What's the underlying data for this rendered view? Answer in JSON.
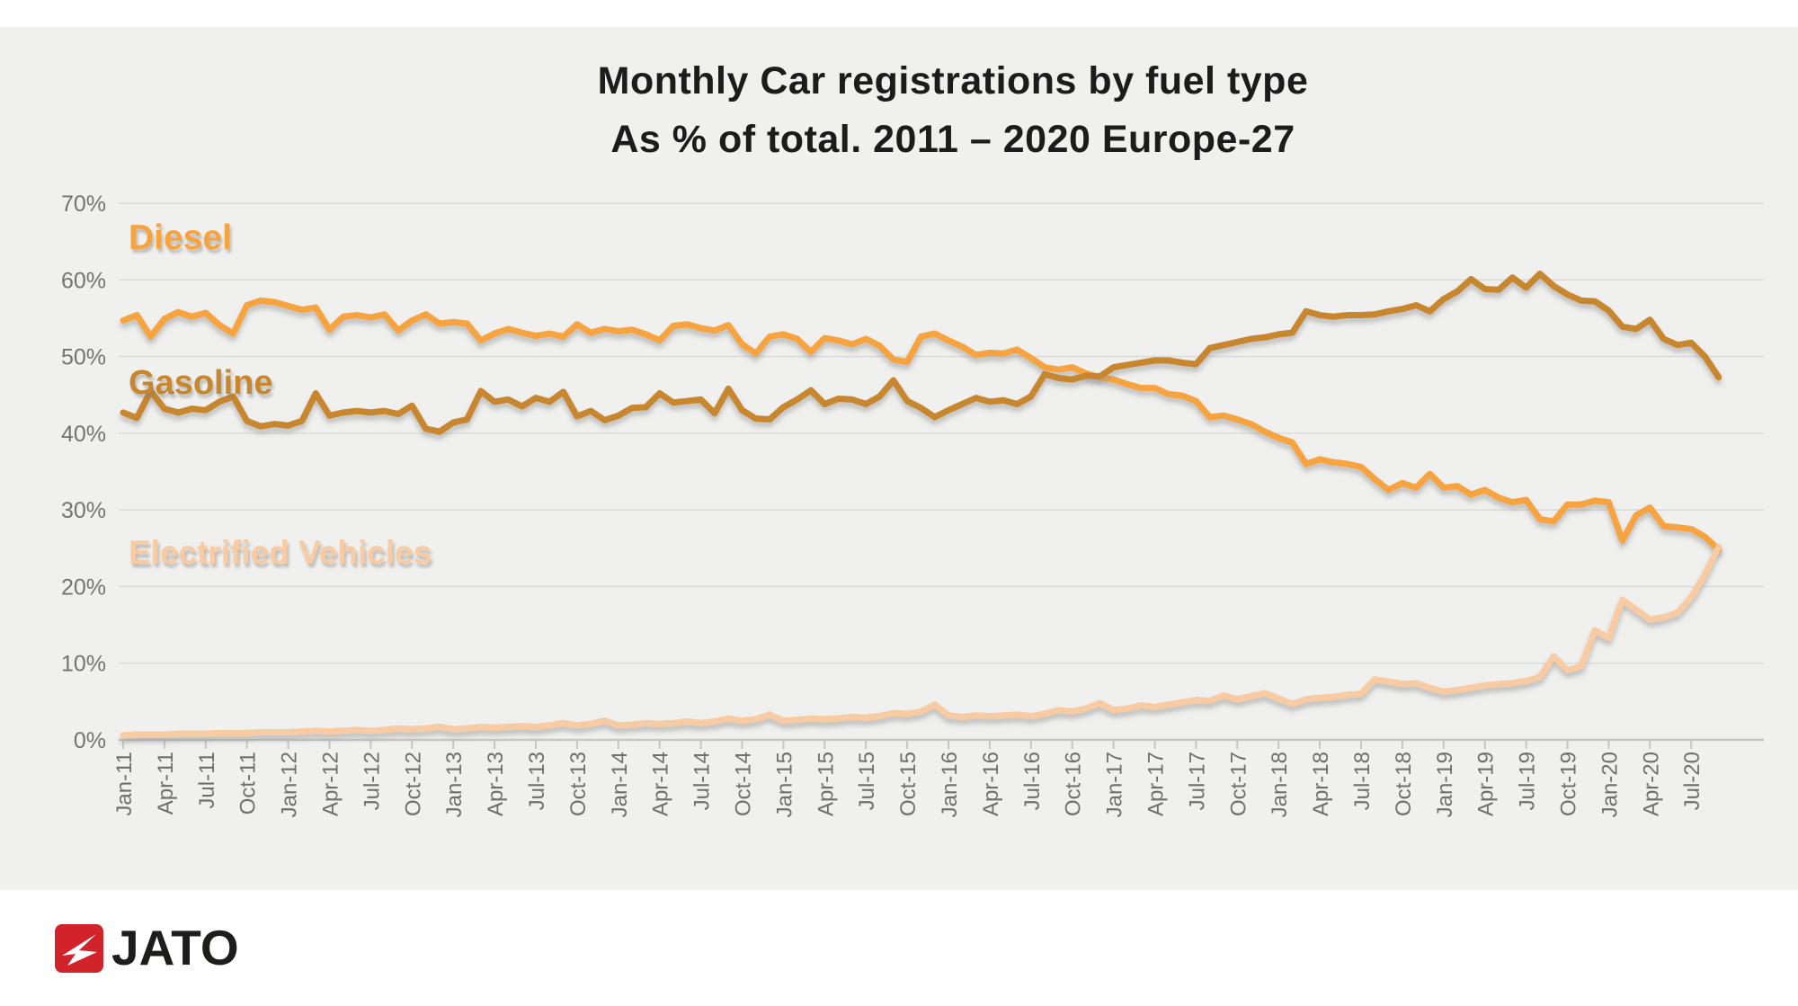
{
  "title": {
    "line1": "Monthly Car registrations by fuel type",
    "line2": "As % of total. 2011 – 2020 Europe-27"
  },
  "series_labels": {
    "diesel": "Diesel",
    "gasoline": "Gasoline",
    "ev": "Electrified Vehicles"
  },
  "footer": {
    "logo_text": "JATO",
    "logo_icon": "jato-arrow-icon",
    "logo_color": "#d2232a"
  },
  "colors": {
    "panel_background": "#f0f0ee",
    "diesel": "#f7a440",
    "gasoline": "#c8872e",
    "ev": "#f9cba3",
    "gridline": "#dcdcdc",
    "axis": "#c6c6c6",
    "tick_label": "#737373",
    "title_text": "#1c1c1c",
    "logo_red": "#d2232a"
  },
  "chart_data": {
    "type": "line",
    "title": "Monthly Car registrations by fuel type — As % of total. 2011 – 2020 Europe-27",
    "xlabel": "",
    "ylabel": "",
    "ylim": [
      0,
      70
    ],
    "yticks": [
      "0%",
      "10%",
      "20%",
      "30%",
      "40%",
      "50%",
      "60%",
      "70%"
    ],
    "grid": true,
    "legend_position": "inline-labels-on-chart",
    "x_tick_interval": "every 3rd month shown (Jan/Apr/Jul/Oct)",
    "x": [
      "Jan-11",
      "Feb-11",
      "Mar-11",
      "Apr-11",
      "May-11",
      "Jun-11",
      "Jul-11",
      "Aug-11",
      "Sep-11",
      "Oct-11",
      "Nov-11",
      "Dec-11",
      "Jan-12",
      "Feb-12",
      "Mar-12",
      "Apr-12",
      "May-12",
      "Jun-12",
      "Jul-12",
      "Aug-12",
      "Sep-12",
      "Oct-12",
      "Nov-12",
      "Dec-12",
      "Jan-13",
      "Feb-13",
      "Mar-13",
      "Apr-13",
      "May-13",
      "Jun-13",
      "Jul-13",
      "Aug-13",
      "Sep-13",
      "Oct-13",
      "Nov-13",
      "Dec-13",
      "Jan-14",
      "Feb-14",
      "Mar-14",
      "Apr-14",
      "May-14",
      "Jun-14",
      "Jul-14",
      "Aug-14",
      "Sep-14",
      "Oct-14",
      "Nov-14",
      "Dec-14",
      "Jan-15",
      "Feb-15",
      "Mar-15",
      "Apr-15",
      "May-15",
      "Jun-15",
      "Jul-15",
      "Aug-15",
      "Sep-15",
      "Oct-15",
      "Nov-15",
      "Dec-15",
      "Jan-16",
      "Feb-16",
      "Mar-16",
      "Apr-16",
      "May-16",
      "Jun-16",
      "Jul-16",
      "Aug-16",
      "Sep-16",
      "Oct-16",
      "Nov-16",
      "Dec-16",
      "Jan-17",
      "Feb-17",
      "Mar-17",
      "Apr-17",
      "May-17",
      "Jun-17",
      "Jul-17",
      "Aug-17",
      "Sep-17",
      "Oct-17",
      "Nov-17",
      "Dec-17",
      "Jan-18",
      "Feb-18",
      "Mar-18",
      "Apr-18",
      "May-18",
      "Jun-18",
      "Jul-18",
      "Aug-18",
      "Sep-18",
      "Oct-18",
      "Nov-18",
      "Dec-18",
      "Jan-19",
      "Feb-19",
      "Mar-19",
      "Apr-19",
      "May-19",
      "Jun-19",
      "Jul-19",
      "Aug-19",
      "Sep-19",
      "Oct-19",
      "Nov-19",
      "Dec-19",
      "Jan-20",
      "Feb-20",
      "Mar-20",
      "Apr-20",
      "May-20",
      "Jun-20",
      "Jul-20",
      "Aug-20",
      "Sep-20"
    ],
    "series": [
      {
        "name": "Diesel",
        "color": "#f7a440",
        "values": [
          54.7,
          55.4,
          52.6,
          54.9,
          55.8,
          55.2,
          55.7,
          54.1,
          53.0,
          56.7,
          57.3,
          57.1,
          56.6,
          56.1,
          56.4,
          53.5,
          55.2,
          55.4,
          55.1,
          55.5,
          53.4,
          54.7,
          55.5,
          54.3,
          54.5,
          54.3,
          52.1,
          53.0,
          53.6,
          53.1,
          52.7,
          53.0,
          52.6,
          54.2,
          53.1,
          53.6,
          53.3,
          53.5,
          52.9,
          52.1,
          54.0,
          54.2,
          53.7,
          53.4,
          54.1,
          51.6,
          50.4,
          52.6,
          52.9,
          52.3,
          50.6,
          52.4,
          52.1,
          51.6,
          52.3,
          51.4,
          49.6,
          49.3,
          52.6,
          53.0,
          52.1,
          51.3,
          50.2,
          50.5,
          50.4,
          50.9,
          49.8,
          48.6,
          48.3,
          48.6,
          47.8,
          47.3,
          47.0,
          46.4,
          45.9,
          45.9,
          45.1,
          44.9,
          44.2,
          42.1,
          42.3,
          41.8,
          41.2,
          40.2,
          39.4,
          38.8,
          36.0,
          36.6,
          36.2,
          36.0,
          35.6,
          34.0,
          32.6,
          33.5,
          32.9,
          34.7,
          32.9,
          33.1,
          32.0,
          32.6,
          31.6,
          31.0,
          31.3,
          28.8,
          28.5,
          30.7,
          30.7,
          31.2,
          31.0,
          26.0,
          29.3,
          30.3,
          27.9,
          27.7,
          27.5,
          26.5,
          24.8
        ]
      },
      {
        "name": "Gasoline",
        "color": "#c8872e",
        "values": [
          42.7,
          42.0,
          45.5,
          43.2,
          42.7,
          43.2,
          43.0,
          44.1,
          44.8,
          41.6,
          40.9,
          41.2,
          41.0,
          41.6,
          45.2,
          42.3,
          42.7,
          42.9,
          42.7,
          42.9,
          42.5,
          43.6,
          40.6,
          40.2,
          41.4,
          41.8,
          45.5,
          44.1,
          44.4,
          43.5,
          44.6,
          44.1,
          45.4,
          42.2,
          42.9,
          41.7,
          42.3,
          43.3,
          43.4,
          45.2,
          44.0,
          44.2,
          44.4,
          42.6,
          45.8,
          43.0,
          41.9,
          41.8,
          43.4,
          44.4,
          45.6,
          43.8,
          44.5,
          44.4,
          43.8,
          44.8,
          46.9,
          44.2,
          43.3,
          42.1,
          43.0,
          43.8,
          44.6,
          44.1,
          44.3,
          43.8,
          44.8,
          47.7,
          47.2,
          47.0,
          47.5,
          47.4,
          48.6,
          48.9,
          49.2,
          49.5,
          49.5,
          49.2,
          49.0,
          51.1,
          51.5,
          51.9,
          52.3,
          52.5,
          52.9,
          53.1,
          55.9,
          55.4,
          55.2,
          55.4,
          55.4,
          55.5,
          55.9,
          56.2,
          56.7,
          55.9,
          57.5,
          58.5,
          60.1,
          58.8,
          58.7,
          60.3,
          59.0,
          60.8,
          59.2,
          58.1,
          57.3,
          57.2,
          56.0,
          53.9,
          53.6,
          54.8,
          52.3,
          51.5,
          51.8,
          50.0,
          47.3
        ]
      },
      {
        "name": "Electrified Vehicles",
        "color": "#f9cba3",
        "values": [
          0.6,
          0.7,
          0.7,
          0.7,
          0.8,
          0.8,
          0.8,
          0.9,
          0.9,
          0.9,
          1.0,
          1.0,
          1.0,
          1.1,
          1.2,
          1.1,
          1.2,
          1.3,
          1.2,
          1.3,
          1.5,
          1.4,
          1.5,
          1.7,
          1.4,
          1.5,
          1.7,
          1.6,
          1.7,
          1.8,
          1.7,
          1.9,
          2.2,
          1.9,
          2.1,
          2.5,
          1.9,
          2.0,
          2.2,
          2.1,
          2.2,
          2.4,
          2.2,
          2.4,
          2.8,
          2.5,
          2.7,
          3.3,
          2.5,
          2.6,
          2.8,
          2.7,
          2.8,
          3.0,
          2.9,
          3.1,
          3.5,
          3.4,
          3.7,
          4.6,
          3.2,
          3.0,
          3.2,
          3.1,
          3.2,
          3.3,
          3.1,
          3.4,
          3.9,
          3.7,
          4.1,
          4.8,
          3.9,
          4.1,
          4.5,
          4.3,
          4.6,
          4.9,
          5.2,
          5.1,
          5.8,
          5.3,
          5.7,
          6.1,
          5.4,
          4.7,
          5.3,
          5.5,
          5.6,
          5.9,
          6.0,
          7.9,
          7.6,
          7.3,
          7.4,
          6.8,
          6.3,
          6.5,
          6.8,
          7.1,
          7.3,
          7.4,
          7.7,
          8.2,
          10.9,
          9.1,
          9.6,
          14.3,
          13.3,
          18.3,
          17.0,
          15.7,
          16.0,
          16.6,
          18.6,
          21.6,
          25.2
        ]
      }
    ]
  }
}
